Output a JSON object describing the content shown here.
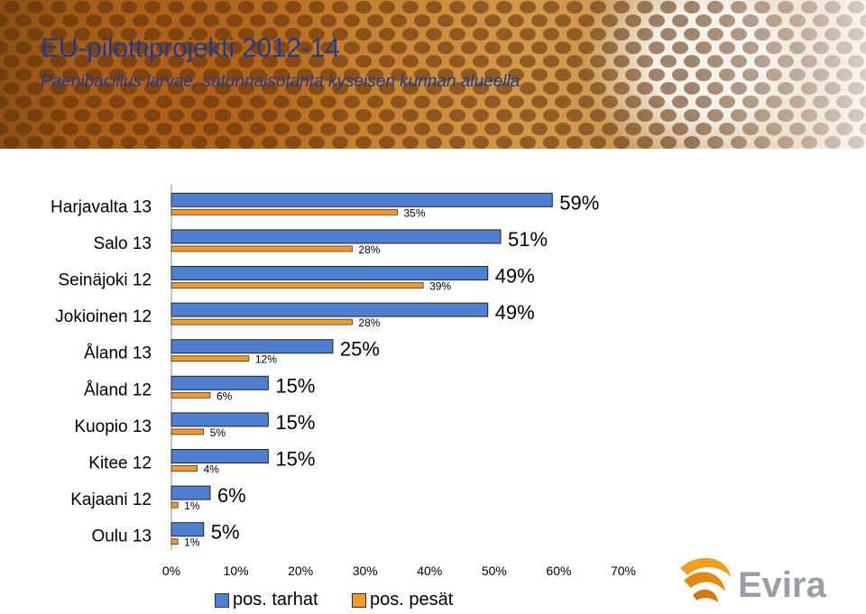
{
  "header": {
    "title": "EU-pilottiprojekti 2012-14",
    "subtitle": "Paenibacillus larvae, satunnaisotanta kyseisen kunnan alueella"
  },
  "colors": {
    "title": "#1f3c8c",
    "tarhat": "#4f7fd0",
    "pesat": "#f59a2a"
  },
  "logo": {
    "text": "Evira",
    "icon": "evira-swoosh-logo"
  },
  "chart_data": {
    "type": "bar",
    "orientation": "horizontal",
    "categories": [
      "Harjavalta 13",
      "Salo 13",
      "Seinäjoki 12",
      "Jokioinen 12",
      "Åland 13",
      "Åland 12",
      "Kuopio 13",
      "Kitee 12",
      "Kajaani 12",
      "Oulu 13"
    ],
    "series": [
      {
        "name": "pos. tarhat",
        "values": [
          59,
          51,
          49,
          49,
          25,
          15,
          15,
          15,
          6,
          5
        ],
        "labels": [
          "59%",
          "51%",
          "49%",
          "49%",
          "25%",
          "15%",
          "15%",
          "15%",
          "6%",
          "5%"
        ]
      },
      {
        "name": "pos. pesät",
        "values": [
          35,
          28,
          39,
          28,
          12,
          6,
          5,
          4,
          1,
          1
        ],
        "labels": [
          "35%",
          "28%",
          "39%",
          "28%",
          "12%",
          "6%",
          "5%",
          "4%",
          "1%",
          "1%"
        ]
      }
    ],
    "xlim": [
      0,
      70
    ],
    "x_ticks": [
      "0%",
      "10%",
      "20%",
      "30%",
      "40%",
      "50%",
      "60%",
      "70%"
    ],
    "legend_position": "bottom",
    "grid": false
  }
}
